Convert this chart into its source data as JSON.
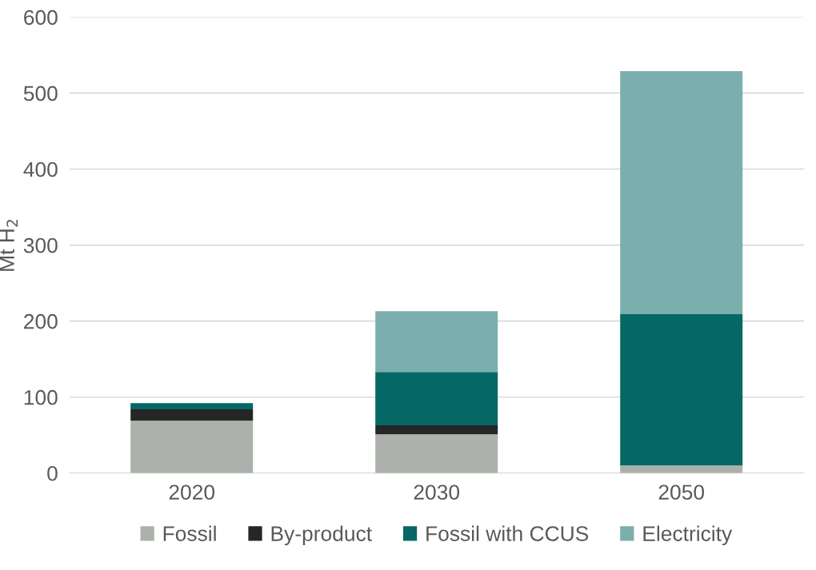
{
  "chart_data": {
    "type": "bar",
    "stacked": true,
    "ylabel": "Mt H$_{2}$",
    "categories": [
      "2020",
      "2030",
      "2050"
    ],
    "series": [
      {
        "name": "Fossil",
        "color": "#acb1ab",
        "values": [
          69,
          51,
          10
        ]
      },
      {
        "name": "By-product",
        "color": "#262626",
        "values": [
          15,
          12,
          0
        ]
      },
      {
        "name": "Fossil with CCUS",
        "color": "#066865",
        "values": [
          8,
          70,
          199
        ]
      },
      {
        "name": "Electricity",
        "color": "#7aafae",
        "values": [
          0,
          80,
          320
        ]
      }
    ],
    "ylim": [
      0,
      600
    ],
    "yticks": [
      0,
      100,
      200,
      300,
      400,
      500,
      600
    ],
    "grid": "y",
    "legend": "bottom"
  }
}
